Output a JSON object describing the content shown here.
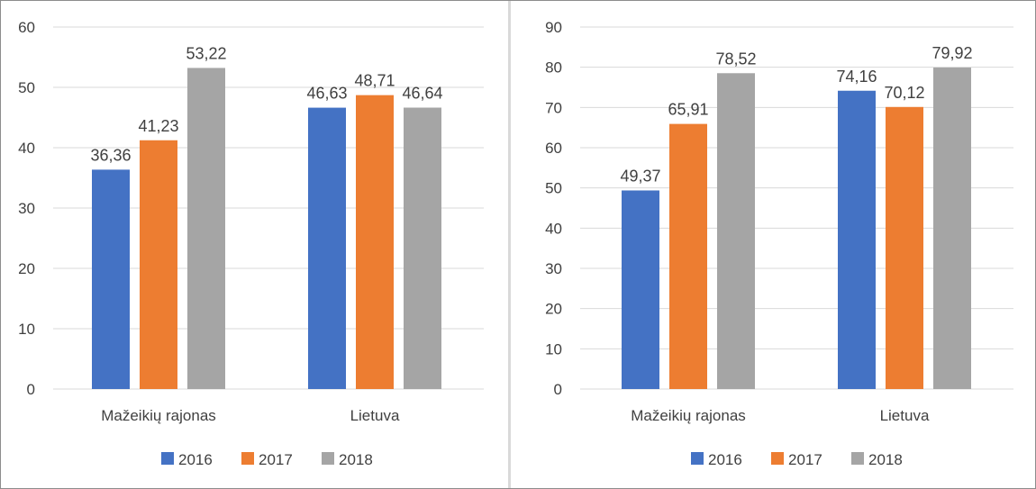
{
  "chart_data": [
    {
      "type": "bar",
      "categories": [
        "Mažeikių rajonas",
        "Lietuva"
      ],
      "series": [
        {
          "name": "2016",
          "values": [
            36.36,
            46.63
          ]
        },
        {
          "name": "2017",
          "values": [
            41.23,
            48.71
          ]
        },
        {
          "name": "2018",
          "values": [
            53.22,
            46.64
          ]
        }
      ],
      "data_labels": [
        [
          "36,36",
          "46,63"
        ],
        [
          "41,23",
          "48,71"
        ],
        [
          "53,22",
          "46,64"
        ]
      ],
      "ylim": [
        0,
        60
      ],
      "yticks": [
        0,
        10,
        20,
        30,
        40,
        50,
        60
      ],
      "grid": true,
      "legend": "bottom"
    },
    {
      "type": "bar",
      "categories": [
        "Mažeikių rajonas",
        "Lietuva"
      ],
      "series": [
        {
          "name": "2016",
          "values": [
            49.37,
            74.16
          ]
        },
        {
          "name": "2017",
          "values": [
            65.91,
            70.12
          ]
        },
        {
          "name": "2018",
          "values": [
            78.52,
            79.92
          ]
        }
      ],
      "data_labels": [
        [
          "49,37",
          "74,16"
        ],
        [
          "65,91",
          "70,12"
        ],
        [
          "78,52",
          "79,92"
        ]
      ],
      "ylim": [
        0,
        90
      ],
      "yticks": [
        0,
        10,
        20,
        30,
        40,
        50,
        60,
        70,
        80,
        90
      ],
      "grid": true,
      "legend": "bottom"
    }
  ],
  "colors": {
    "2016": "#4472c4",
    "2017": "#ed7d31",
    "2018": "#a5a5a5"
  }
}
